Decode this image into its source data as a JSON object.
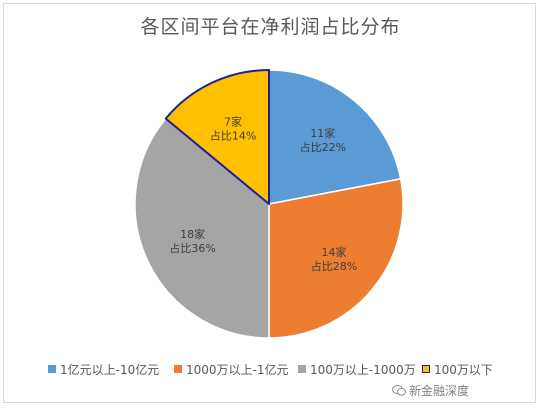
{
  "chart_data": {
    "type": "pie",
    "title": "各区间平台在净利润占比分布",
    "slices": [
      {
        "name": "1亿元以上-10亿元",
        "value": 22,
        "count_label": "11家",
        "pct_label": "占比22%",
        "color": "#5b9bd5",
        "outline": "#ffffff"
      },
      {
        "name": "1000万以上-1亿元",
        "value": 28,
        "count_label": "14家",
        "pct_label": "占比28%",
        "color": "#ed7d31",
        "outline": "#ffffff"
      },
      {
        "name": "100万以上-1000万",
        "value": 36,
        "count_label": "18家",
        "pct_label": "占比36%",
        "color": "#a5a5a5",
        "outline": "#ffffff"
      },
      {
        "name": "100万以下",
        "value": 14,
        "count_label": "7家",
        "pct_label": "占比14%",
        "color": "#ffc000",
        "outline": "#1f1f9a"
      }
    ],
    "legend_position": "bottom"
  },
  "watermark": {
    "text": "新金融深度",
    "icon": "wechat-icon"
  }
}
